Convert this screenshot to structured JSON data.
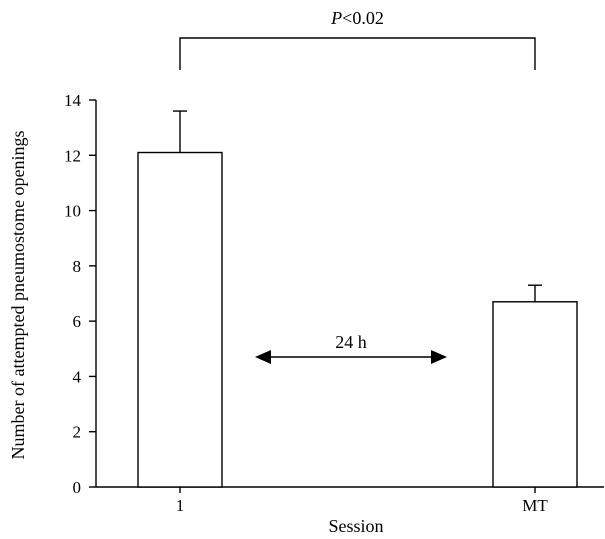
{
  "chart_data": {
    "type": "bar",
    "categories": [
      "1",
      "MT"
    ],
    "values": [
      12.1,
      6.7
    ],
    "errors": [
      1.5,
      0.6
    ],
    "xlabel": "Session",
    "ylabel": "Number of attempted pneumostome openings",
    "ylim": [
      0,
      14
    ],
    "yticks": [
      "0",
      "2",
      "4",
      "6",
      "8",
      "10",
      "12",
      "14"
    ],
    "grid": false,
    "annotations": {
      "significance_p": "P",
      "significance_rest": "<0.02",
      "interval": "24 h"
    },
    "colors": {
      "bar_fill": "#ffffff",
      "stroke": "#000000"
    }
  }
}
